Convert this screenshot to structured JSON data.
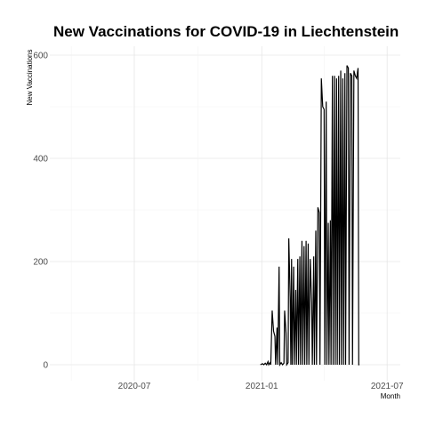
{
  "chart_data": {
    "type": "line",
    "title": "New Vaccinations for COVID-19 in Liechtenstein",
    "xlabel": "Month",
    "ylabel": "New Vaccinations",
    "x_tick_labels": [
      "2020-07",
      "2021-01",
      "2021-07"
    ],
    "y_ticks": [
      0,
      200,
      400,
      600
    ],
    "ylim": [
      0,
      600
    ],
    "xlim": [
      "2020-03-01",
      "2021-07-20"
    ],
    "grid": true,
    "series": [
      {
        "values": [
          [
            "2020-12-30",
            0
          ],
          [
            "2021-01-02",
            2
          ],
          [
            "2021-01-04",
            0
          ],
          [
            "2021-01-06",
            3
          ],
          [
            "2021-01-08",
            0
          ],
          [
            "2021-01-10",
            6
          ],
          [
            "2021-01-11",
            0
          ],
          [
            "2021-01-13",
            4
          ],
          [
            "2021-01-14",
            0
          ],
          [
            "2021-01-16",
            105
          ],
          [
            "2021-01-18",
            65
          ],
          [
            "2021-01-20",
            55
          ],
          [
            "2021-01-21",
            0
          ],
          [
            "2021-01-23",
            72
          ],
          [
            "2021-01-24",
            0
          ],
          [
            "2021-01-26",
            190
          ],
          [
            "2021-01-27",
            0
          ],
          [
            "2021-01-29",
            4
          ],
          [
            "2021-01-31",
            0
          ],
          [
            "2021-02-02",
            3
          ],
          [
            "2021-02-03",
            105
          ],
          [
            "2021-02-05",
            62
          ],
          [
            "2021-02-06",
            0
          ],
          [
            "2021-02-08",
            4
          ],
          [
            "2021-02-09",
            245
          ],
          [
            "2021-02-11",
            130
          ],
          [
            "2021-02-12",
            0
          ],
          [
            "2021-02-13",
            205
          ],
          [
            "2021-02-14",
            0
          ],
          [
            "2021-02-16",
            190
          ],
          [
            "2021-02-17",
            0
          ],
          [
            "2021-02-19",
            145
          ],
          [
            "2021-02-20",
            0
          ],
          [
            "2021-02-22",
            205
          ],
          [
            "2021-02-23",
            0
          ],
          [
            "2021-02-25",
            210
          ],
          [
            "2021-02-26",
            0
          ],
          [
            "2021-02-28",
            240
          ],
          [
            "2021-03-01",
            0
          ],
          [
            "2021-03-03",
            230
          ],
          [
            "2021-03-04",
            0
          ],
          [
            "2021-03-06",
            240
          ],
          [
            "2021-03-07",
            0
          ],
          [
            "2021-03-09",
            235
          ],
          [
            "2021-03-10",
            0
          ],
          [
            "2021-03-12",
            205
          ],
          [
            "2021-03-14",
            120
          ],
          [
            "2021-03-15",
            0
          ],
          [
            "2021-03-17",
            210
          ],
          [
            "2021-03-18",
            0
          ],
          [
            "2021-03-20",
            260
          ],
          [
            "2021-03-21",
            0
          ],
          [
            "2021-03-23",
            305
          ],
          [
            "2021-03-25",
            295
          ],
          [
            "2021-03-26",
            0
          ],
          [
            "2021-03-28",
            555
          ],
          [
            "2021-03-30",
            500
          ],
          [
            "2021-04-01",
            495
          ],
          [
            "2021-04-02",
            0
          ],
          [
            "2021-04-04",
            510
          ],
          [
            "2021-04-05",
            0
          ],
          [
            "2021-04-07",
            275
          ],
          [
            "2021-04-08",
            0
          ],
          [
            "2021-04-10",
            280
          ],
          [
            "2021-04-11",
            0
          ],
          [
            "2021-04-13",
            560
          ],
          [
            "2021-04-14",
            0
          ],
          [
            "2021-04-16",
            560
          ],
          [
            "2021-04-17",
            0
          ],
          [
            "2021-04-19",
            555
          ],
          [
            "2021-04-20",
            0
          ],
          [
            "2021-04-22",
            560
          ],
          [
            "2021-04-23",
            0
          ],
          [
            "2021-04-25",
            570
          ],
          [
            "2021-04-26",
            0
          ],
          [
            "2021-04-28",
            555
          ],
          [
            "2021-04-29",
            0
          ],
          [
            "2021-05-01",
            565
          ],
          [
            "2021-05-02",
            0
          ],
          [
            "2021-05-04",
            580
          ],
          [
            "2021-05-06",
            575
          ],
          [
            "2021-05-07",
            0
          ],
          [
            "2021-05-09",
            565
          ],
          [
            "2021-05-11",
            560
          ],
          [
            "2021-05-12",
            0
          ],
          [
            "2021-05-14",
            570
          ],
          [
            "2021-05-16",
            560
          ],
          [
            "2021-05-18",
            555
          ],
          [
            "2021-05-20",
            575
          ],
          [
            "2021-05-21",
            0
          ],
          [
            "2021-05-22",
            0
          ]
        ]
      }
    ]
  }
}
